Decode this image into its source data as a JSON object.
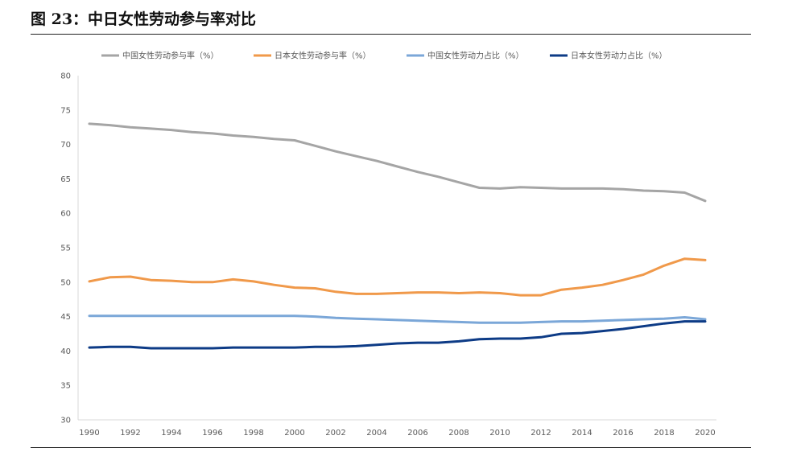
{
  "figure": {
    "title": "图 23：中日女性劳动参与率对比"
  },
  "chart_data": {
    "type": "line",
    "x": [
      1990,
      1991,
      1992,
      1993,
      1994,
      1995,
      1996,
      1997,
      1998,
      1999,
      2000,
      2001,
      2002,
      2003,
      2004,
      2005,
      2006,
      2007,
      2008,
      2009,
      2010,
      2011,
      2012,
      2013,
      2014,
      2015,
      2016,
      2017,
      2018,
      2019,
      2020
    ],
    "xticks": [
      1990,
      1992,
      1994,
      1996,
      1998,
      2000,
      2002,
      2004,
      2006,
      2008,
      2010,
      2012,
      2014,
      2016,
      2018,
      2020
    ],
    "ylim": [
      30,
      80
    ],
    "yticks": [
      30,
      35,
      40,
      45,
      50,
      55,
      60,
      65,
      70,
      75,
      80
    ],
    "grid": false,
    "legend_position": "top",
    "series": [
      {
        "name": "中国女性劳动参与率（%）",
        "color": "#a5a5a5",
        "values": [
          73.0,
          72.8,
          72.5,
          72.3,
          72.1,
          71.8,
          71.6,
          71.3,
          71.1,
          70.8,
          70.6,
          69.8,
          69.0,
          68.3,
          67.6,
          66.8,
          66.0,
          65.3,
          64.5,
          63.7,
          63.6,
          63.8,
          63.7,
          63.6,
          63.6,
          63.6,
          63.5,
          63.3,
          63.2,
          63.0,
          61.8
        ]
      },
      {
        "name": "日本女性劳动参与率（%）",
        "color": "#f0994a",
        "values": [
          50.1,
          50.7,
          50.8,
          50.3,
          50.2,
          50.0,
          50.0,
          50.4,
          50.1,
          49.6,
          49.2,
          49.1,
          48.6,
          48.3,
          48.3,
          48.4,
          48.5,
          48.5,
          48.4,
          48.5,
          48.4,
          48.1,
          48.1,
          48.9,
          49.2,
          49.6,
          50.3,
          51.1,
          52.4,
          53.4,
          53.2
        ]
      },
      {
        "name": "中国女性劳动力占比（%）",
        "color": "#7ba7d8",
        "values": [
          45.1,
          45.1,
          45.1,
          45.1,
          45.1,
          45.1,
          45.1,
          45.1,
          45.1,
          45.1,
          45.1,
          45.0,
          44.8,
          44.7,
          44.6,
          44.5,
          44.4,
          44.3,
          44.2,
          44.1,
          44.1,
          44.1,
          44.2,
          44.3,
          44.3,
          44.4,
          44.5,
          44.6,
          44.7,
          44.9,
          44.6
        ]
      },
      {
        "name": "日本女性劳动力占比（%）",
        "color": "#0d3b86",
        "values": [
          40.5,
          40.6,
          40.6,
          40.4,
          40.4,
          40.4,
          40.4,
          40.5,
          40.5,
          40.5,
          40.5,
          40.6,
          40.6,
          40.7,
          40.9,
          41.1,
          41.2,
          41.2,
          41.4,
          41.7,
          41.8,
          41.8,
          42.0,
          42.5,
          42.6,
          42.9,
          43.2,
          43.6,
          44.0,
          44.3,
          44.3
        ]
      }
    ]
  }
}
